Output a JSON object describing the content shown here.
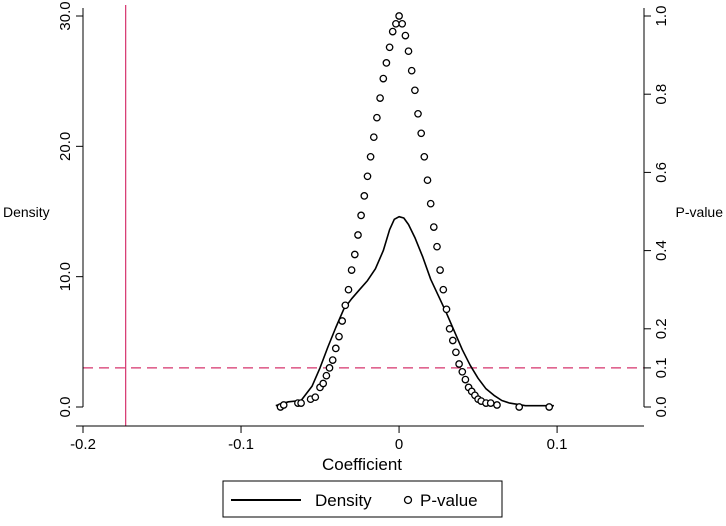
{
  "chart_data": {
    "type": "line",
    "xlabel": "Coefficient",
    "ylabel_left": "Density",
    "ylabel_right": "P-value",
    "x_ticks": [
      -0.2,
      -0.1,
      0,
      0.1
    ],
    "x_tick_labels": [
      "-0.2",
      "-0.1",
      "0",
      "0.1"
    ],
    "xlim": [
      -0.2,
      0.155
    ],
    "y_left_ticks": [
      0,
      10,
      20,
      30
    ],
    "y_left_tick_labels": [
      "0.0",
      "10.0",
      "20.0",
      "30.0"
    ],
    "ylim_left": [
      0,
      30
    ],
    "y_right_ticks": [
      0,
      0.1,
      0.2,
      0.4,
      0.6,
      0.8,
      1.0
    ],
    "y_right_tick_labels": [
      "0.0",
      "0.1",
      "0.2",
      "0.4",
      "0.6",
      "0.8",
      "1.0"
    ],
    "ylim_right": [
      0,
      1.0
    ],
    "reference_lines": {
      "vertical_x": -0.173,
      "vertical_color": "#d6336c",
      "horizontal_pvalue": 0.1,
      "horizontal_color": "#d6336c",
      "horizontal_style": "dashed"
    },
    "legend": {
      "placement": "bottom",
      "entries": [
        "Density",
        "P-value"
      ]
    },
    "series": [
      {
        "name": "Density",
        "kind": "line",
        "axis": "left",
        "x": [
          -0.078,
          -0.07,
          -0.062,
          -0.055,
          -0.05,
          -0.045,
          -0.04,
          -0.035,
          -0.03,
          -0.025,
          -0.02,
          -0.015,
          -0.01,
          -0.006,
          -0.003,
          0,
          0.003,
          0.006,
          0.01,
          0.015,
          0.02,
          0.025,
          0.03,
          0.035,
          0.04,
          0.045,
          0.05,
          0.055,
          0.06,
          0.065,
          0.07,
          0.08,
          0.09,
          0.098
        ],
        "y": [
          0.1,
          0.4,
          0.5,
          1.6,
          3.0,
          4.6,
          6.1,
          7.5,
          8.3,
          9.0,
          9.7,
          10.6,
          12.0,
          13.6,
          14.4,
          14.6,
          14.5,
          14.0,
          13.0,
          11.5,
          9.8,
          8.5,
          7.2,
          5.8,
          4.4,
          3.2,
          2.2,
          1.4,
          0.9,
          0.5,
          0.3,
          0.1,
          0.1,
          0.1
        ]
      },
      {
        "name": "P-value",
        "kind": "scatter",
        "axis": "right",
        "x": [
          -0.075,
          -0.073,
          -0.064,
          -0.062,
          -0.056,
          -0.053,
          -0.05,
          -0.048,
          -0.046,
          -0.044,
          -0.042,
          -0.04,
          -0.038,
          -0.036,
          -0.034,
          -0.032,
          -0.03,
          -0.028,
          -0.026,
          -0.024,
          -0.022,
          -0.02,
          -0.018,
          -0.016,
          -0.014,
          -0.012,
          -0.01,
          -0.008,
          -0.006,
          -0.004,
          -0.002,
          0,
          0.002,
          0.004,
          0.006,
          0.008,
          0.01,
          0.012,
          0.014,
          0.016,
          0.018,
          0.02,
          0.022,
          0.024,
          0.026,
          0.028,
          0.03,
          0.032,
          0.034,
          0.036,
          0.038,
          0.04,
          0.042,
          0.044,
          0.046,
          0.048,
          0.05,
          0.052,
          0.055,
          0.058,
          0.062,
          0.076,
          0.095
        ],
        "y": [
          0.0,
          0.005,
          0.01,
          0.01,
          0.02,
          0.025,
          0.05,
          0.06,
          0.08,
          0.1,
          0.12,
          0.15,
          0.18,
          0.22,
          0.26,
          0.3,
          0.35,
          0.39,
          0.44,
          0.49,
          0.54,
          0.59,
          0.64,
          0.69,
          0.74,
          0.79,
          0.84,
          0.88,
          0.92,
          0.96,
          0.98,
          1.0,
          0.98,
          0.95,
          0.91,
          0.86,
          0.81,
          0.75,
          0.7,
          0.64,
          0.58,
          0.52,
          0.46,
          0.41,
          0.35,
          0.3,
          0.25,
          0.2,
          0.17,
          0.14,
          0.11,
          0.09,
          0.07,
          0.05,
          0.04,
          0.03,
          0.02,
          0.015,
          0.01,
          0.01,
          0.005,
          0.0,
          0.0
        ]
      }
    ]
  }
}
